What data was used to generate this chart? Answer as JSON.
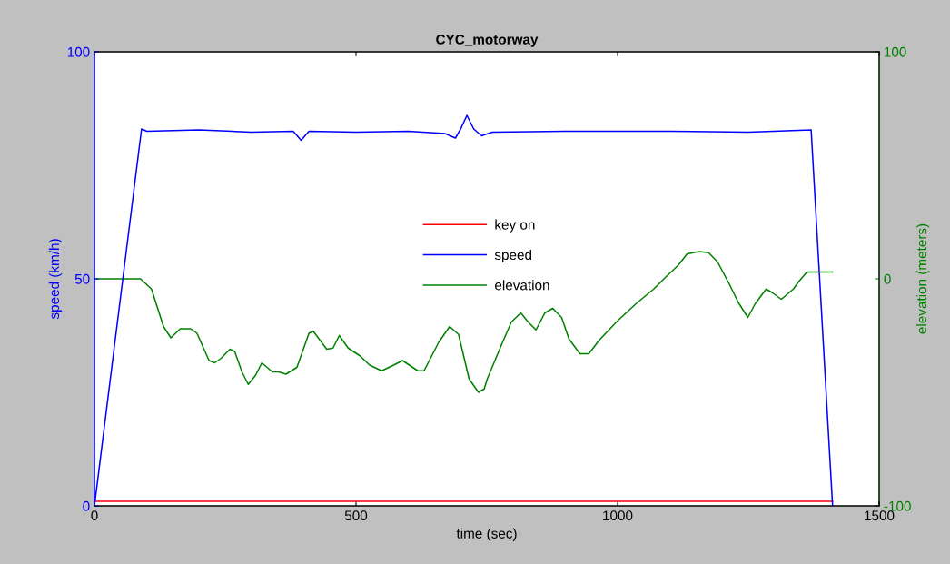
{
  "chart_data": {
    "type": "line",
    "title": "CYC_motorway",
    "xlabel": "time (sec)",
    "ylabel": "speed (km/h)",
    "y2label": "elevation (meters)",
    "xlim": [
      0,
      1500
    ],
    "xticks": [
      0,
      500,
      1000,
      1500
    ],
    "ylim": [
      0,
      100
    ],
    "yticks": [
      0,
      50,
      100
    ],
    "y2lim": [
      -100,
      100
    ],
    "y2ticks": [
      -100,
      0,
      100
    ],
    "grid": false,
    "legend": "center",
    "marker": "none",
    "line_style": "solid",
    "series": [
      {
        "name": "key on",
        "color": "#ff0000",
        "x": [
          0,
          1411
        ],
        "values": [
          1,
          1
        ]
      },
      {
        "name": "speed",
        "color": "#0000ff",
        "x": [
          0,
          90,
          100,
          200,
          300,
          380,
          395,
          410,
          500,
          600,
          670,
          690,
          700,
          712,
          725,
          740,
          760,
          900,
          1100,
          1250,
          1370,
          1411
        ],
        "values": [
          0,
          83,
          82.5,
          82.8,
          82.3,
          82.5,
          80.5,
          82.5,
          82.3,
          82.5,
          82,
          81,
          83,
          86,
          83,
          81.5,
          82.3,
          82.5,
          82.5,
          82.3,
          82.8,
          0
        ]
      },
      {
        "name": "elevation",
        "color": "#008000",
        "axis": "y2",
        "x": [
          0,
          88,
          109,
          132,
          146,
          164,
          184,
          196,
          219,
          230,
          242,
          259,
          268,
          282,
          294,
          308,
          320,
          340,
          352,
          366,
          387,
          410,
          418,
          444,
          456,
          468,
          485,
          508,
          526,
          549,
          572,
          589,
          618,
          630,
          658,
          679,
          696,
          716,
          734,
          745,
          751,
          780,
          797,
          815,
          829,
          844,
          861,
          876,
          893,
          907,
          928,
          945,
          965,
          1000,
          1035,
          1069,
          1093,
          1116,
          1133,
          1156,
          1174,
          1191,
          1214,
          1231,
          1249,
          1263,
          1284,
          1295,
          1313,
          1336,
          1347,
          1362,
          1411
        ],
        "values": [
          0,
          0,
          -4.5,
          -21,
          -26,
          -22,
          -22,
          -24,
          -36,
          -37,
          -35,
          -31,
          -32,
          -41,
          -46.5,
          -42.5,
          -37,
          -41,
          -41,
          -42,
          -39,
          -24,
          -23,
          -31,
          -30.5,
          -25,
          -30.5,
          -34,
          -38,
          -40.5,
          -38,
          -36,
          -40.5,
          -40.5,
          -28,
          -21,
          -24.5,
          -44,
          -50,
          -48.5,
          -44,
          -28,
          -19,
          -15,
          -19,
          -22.5,
          -15,
          -13,
          -17,
          -26.5,
          -33,
          -33,
          -27,
          -18.5,
          -11,
          -4.5,
          1,
          6,
          11,
          12,
          11.5,
          7.5,
          -2.5,
          -10.5,
          -17,
          -11,
          -4.5,
          -6,
          -9,
          -4.5,
          -1,
          3,
          3
        ]
      }
    ]
  }
}
